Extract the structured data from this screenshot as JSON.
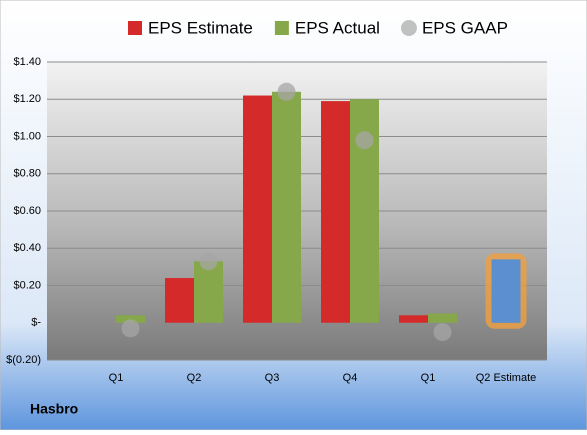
{
  "chart_data": {
    "type": "bar",
    "categories": [
      "Q1",
      "Q2",
      "Q3",
      "Q4",
      "Q1",
      "Q2 Estimate"
    ],
    "series": [
      {
        "name": "EPS Estimate",
        "color": "#d42a2a",
        "values": [
          0,
          0.24,
          1.22,
          1.19,
          0.04,
          0.34
        ]
      },
      {
        "name": "EPS Actual",
        "color": "#86a84a",
        "values": [
          0.04,
          0.33,
          1.24,
          1.2,
          0.05,
          null
        ]
      },
      {
        "name": "EPS GAAP",
        "color": "#a6a6a6",
        "type": "scatter",
        "values": [
          -0.03,
          0.33,
          1.24,
          0.98,
          -0.05,
          null
        ]
      }
    ],
    "highlight": {
      "series": 0,
      "index": 5,
      "color": "#5b8fd0",
      "glow": "#f0a040"
    },
    "ylim": [
      -0.2,
      1.4
    ],
    "yticks": [
      {
        "value": -0.2,
        "label": "$(0.20)"
      },
      {
        "value": 0,
        "label": "$-"
      },
      {
        "value": 0.2,
        "label": "$0.20"
      },
      {
        "value": 0.4,
        "label": "$0.40"
      },
      {
        "value": 0.6,
        "label": "$0.60"
      },
      {
        "value": 0.8,
        "label": "$0.80"
      },
      {
        "value": 1,
        "label": "$1.00"
      },
      {
        "value": 1.2,
        "label": "$1.20"
      },
      {
        "value": 1.4,
        "label": "$1.40"
      }
    ],
    "grid": true,
    "legend": "top",
    "company": "Hasbro"
  }
}
